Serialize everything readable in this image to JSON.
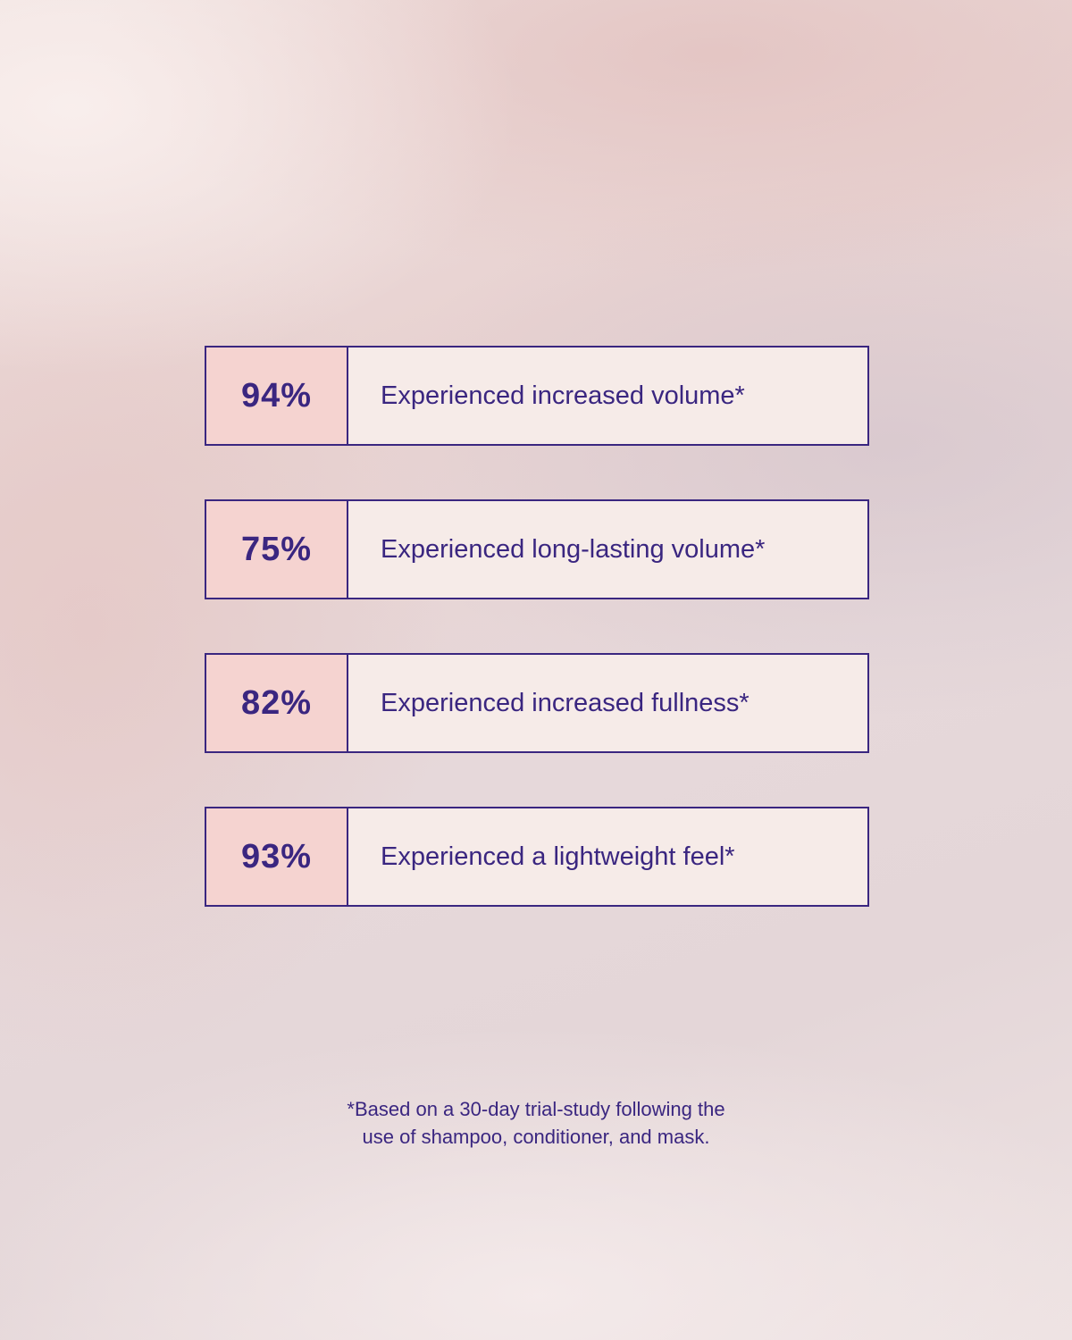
{
  "stats": [
    {
      "value": "94%",
      "label": "Experienced increased volume*"
    },
    {
      "value": "75%",
      "label": "Experienced long-lasting volume*"
    },
    {
      "value": "82%",
      "label": "Experienced increased fullness*"
    },
    {
      "value": "93%",
      "label": "Experienced a lightweight feel*"
    }
  ],
  "footnote": {
    "line1": "*Based on a 30-day trial-study following the",
    "line2": "use of shampoo, conditioner, and mask."
  },
  "colors": {
    "accent": "#3a2680",
    "value_fill": "#f5d3d0",
    "label_fill": "#f6ebe8"
  }
}
